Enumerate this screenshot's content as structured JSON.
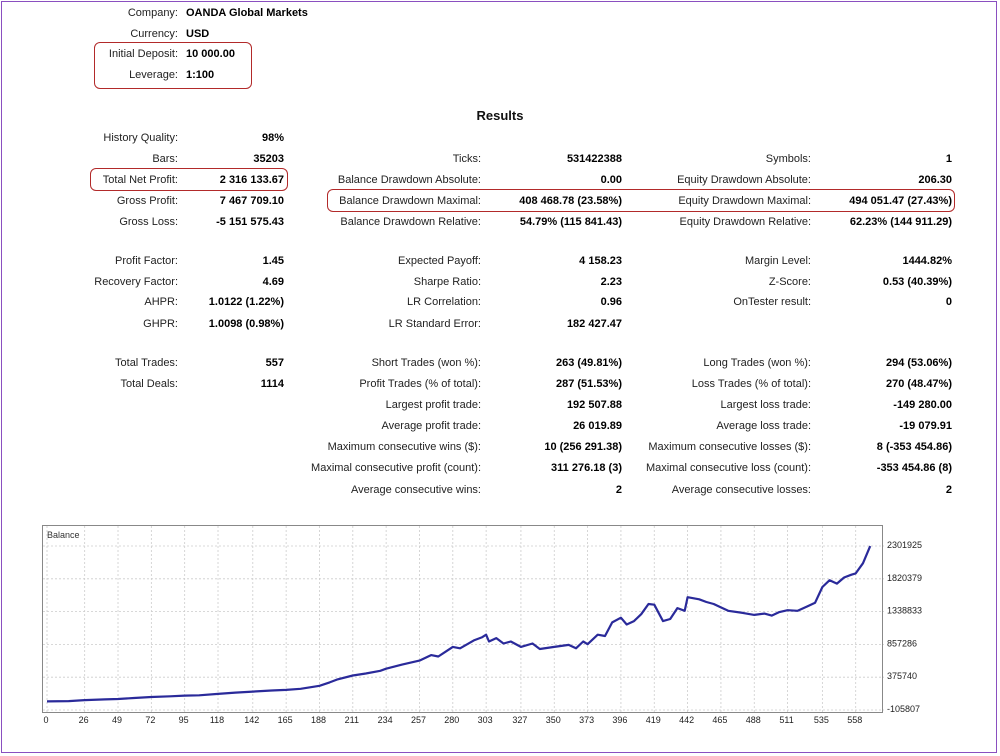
{
  "header": {
    "company_label": "Company:",
    "company_value": "OANDA Global Markets",
    "currency_label": "Currency:",
    "currency_value": "USD",
    "deposit_label": "Initial Deposit:",
    "deposit_value": "10 000.00",
    "leverage_label": "Leverage:",
    "leverage_value": "1:100"
  },
  "results_title": "Results",
  "col1": [
    {
      "label": "History Quality:",
      "value": "98%"
    },
    {
      "label": "Bars:",
      "value": "35203"
    },
    {
      "label": "Total Net Profit:",
      "value": "2 316 133.67"
    },
    {
      "label": "Gross Profit:",
      "value": "7 467 709.10"
    },
    {
      "label": "Gross Loss:",
      "value": "-5 151 575.43"
    },
    {
      "label": "Profit Factor:",
      "value": "1.45"
    },
    {
      "label": "Recovery Factor:",
      "value": "4.69"
    },
    {
      "label": "AHPR:",
      "value": "1.0122 (1.22%)"
    },
    {
      "label": "GHPR:",
      "value": "1.0098 (0.98%)"
    },
    {
      "label": "Total Trades:",
      "value": "557"
    },
    {
      "label": "Total Deals:",
      "value": "1114"
    }
  ],
  "col2": [
    {
      "label": "Ticks:",
      "value": "531422388"
    },
    {
      "label": "Balance Drawdown Absolute:",
      "value": "0.00"
    },
    {
      "label": "Balance Drawdown Maximal:",
      "value": "408 468.78 (23.58%)"
    },
    {
      "label": "Balance Drawdown Relative:",
      "value": "54.79% (115 841.43)"
    },
    {
      "label": "Expected Payoff:",
      "value": "4 158.23"
    },
    {
      "label": "Sharpe Ratio:",
      "value": "2.23"
    },
    {
      "label": "LR Correlation:",
      "value": "0.96"
    },
    {
      "label": "LR Standard Error:",
      "value": "182 427.47"
    },
    {
      "label": "Short Trades (won %):",
      "value": "263 (49.81%)"
    },
    {
      "label": "Profit Trades (% of total):",
      "value": "287 (51.53%)"
    },
    {
      "label": "Largest profit trade:",
      "value": "192 507.88"
    },
    {
      "label": "Average profit trade:",
      "value": "26 019.89"
    },
    {
      "label": "Maximum consecutive wins ($):",
      "value": "10 (256 291.38)"
    },
    {
      "label": "Maximal consecutive profit (count):",
      "value": "311 276.18 (3)"
    },
    {
      "label": "Average consecutive wins:",
      "value": "2"
    }
  ],
  "col3": [
    {
      "label": "Symbols:",
      "value": "1"
    },
    {
      "label": "Equity Drawdown Absolute:",
      "value": "206.30"
    },
    {
      "label": "Equity Drawdown Maximal:",
      "value": "494 051.47 (27.43%)"
    },
    {
      "label": "Equity Drawdown Relative:",
      "value": "62.23% (144 911.29)"
    },
    {
      "label": "Margin Level:",
      "value": "1444.82%"
    },
    {
      "label": "Z-Score:",
      "value": "0.53 (40.39%)"
    },
    {
      "label": "OnTester result:",
      "value": "0"
    },
    {
      "label": "Long Trades (won %):",
      "value": "294 (53.06%)"
    },
    {
      "label": "Loss Trades (% of total):",
      "value": "270 (48.47%)"
    },
    {
      "label": "Largest loss trade:",
      "value": "-149 280.00"
    },
    {
      "label": "Average loss trade:",
      "value": "-19 079.91"
    },
    {
      "label": "Maximum consecutive losses ($):",
      "value": "8 (-353 454.86)"
    },
    {
      "label": "Maximal consecutive loss (count):",
      "value": "-353 454.86 (8)"
    },
    {
      "label": "Average consecutive losses:",
      "value": "2"
    }
  ],
  "chart_data": {
    "type": "line",
    "title": "Balance",
    "line_color": "#2a2a9a",
    "x_ticks": [
      "0",
      "26",
      "49",
      "72",
      "95",
      "118",
      "142",
      "165",
      "188",
      "211",
      "234",
      "257",
      "280",
      "303",
      "327",
      "350",
      "373",
      "396",
      "419",
      "442",
      "465",
      "488",
      "511",
      "535",
      "558"
    ],
    "y_ticks": [
      "2301925",
      "1820379",
      "1338833",
      "857286",
      "375740",
      "-105807"
    ],
    "ylim": [
      -105807,
      2301925
    ],
    "xlim": [
      0,
      572
    ],
    "x": [
      0,
      15,
      26,
      40,
      49,
      60,
      72,
      85,
      95,
      105,
      118,
      130,
      142,
      155,
      165,
      175,
      188,
      195,
      200,
      211,
      220,
      230,
      234,
      245,
      257,
      265,
      270,
      275,
      280,
      285,
      290,
      295,
      300,
      303,
      305,
      310,
      315,
      320,
      327,
      335,
      340,
      350,
      360,
      365,
      370,
      373,
      380,
      385,
      390,
      396,
      400,
      405,
      410,
      415,
      419,
      425,
      430,
      435,
      440,
      442,
      450,
      455,
      460,
      465,
      470,
      480,
      488,
      495,
      500,
      505,
      511,
      518,
      525,
      530,
      535,
      540,
      545,
      550,
      555,
      558,
      563,
      568
    ],
    "y": [
      20000,
      25000,
      40000,
      50000,
      55000,
      70000,
      85000,
      95000,
      105000,
      110000,
      130000,
      150000,
      165000,
      180000,
      190000,
      205000,
      250000,
      300000,
      340000,
      400000,
      430000,
      470000,
      500000,
      560000,
      620000,
      700000,
      680000,
      750000,
      820000,
      800000,
      860000,
      920000,
      960000,
      1000000,
      900000,
      950000,
      870000,
      900000,
      820000,
      870000,
      790000,
      820000,
      850000,
      800000,
      900000,
      860000,
      1000000,
      980000,
      1180000,
      1250000,
      1150000,
      1200000,
      1300000,
      1450000,
      1440000,
      1200000,
      1230000,
      1390000,
      1350000,
      1550000,
      1520000,
      1480000,
      1450000,
      1400000,
      1350000,
      1320000,
      1290000,
      1310000,
      1280000,
      1330000,
      1360000,
      1350000,
      1420000,
      1470000,
      1700000,
      1800000,
      1750000,
      1840000,
      1880000,
      1900000,
      2050000,
      2300000
    ]
  }
}
